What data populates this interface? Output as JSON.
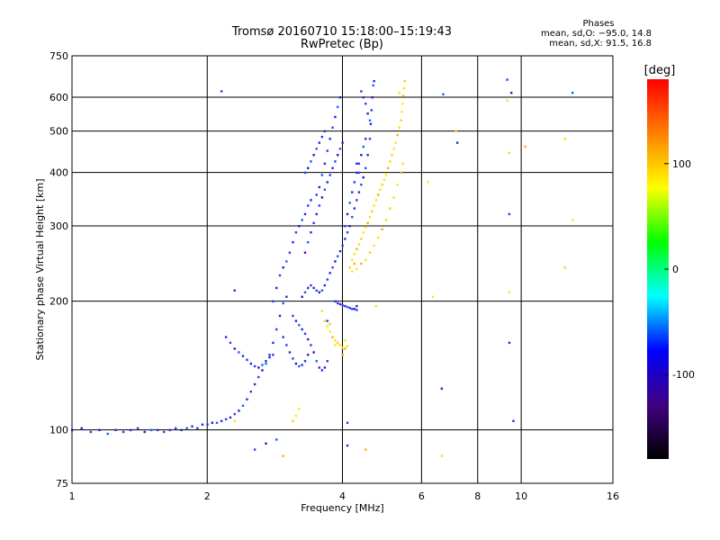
{
  "chart_data": {
    "type": "scatter",
    "title": "Tromsø 20160710 15:18:00–15:19:43",
    "subtitle": "RwPretec (Bp)",
    "xlabel": "Frequency [MHz]",
    "ylabel": "Stationary phase Virtual Height [km]",
    "x_scale": "log",
    "y_scale": "log",
    "xlim": [
      1,
      16
    ],
    "ylim": [
      75,
      750
    ],
    "x_ticks": [
      1,
      2,
      4,
      6,
      8,
      10,
      16
    ],
    "y_ticks": [
      75,
      100,
      200,
      300,
      400,
      500,
      600,
      750
    ],
    "grid": true,
    "phase_stats": {
      "title": "Phases",
      "line_o": "mean, sd,O: −95.0, 14.8",
      "line_x": "mean, sd,X:  91.5, 16.8"
    },
    "colorbar": {
      "label": "[deg]",
      "ticks": [
        100,
        0,
        -100
      ],
      "colors": [
        "#ff0000",
        "#ff8000",
        "#ffff00",
        "#00ff00",
        "#00ffff",
        "#0000ff",
        "#400080",
        "#000000"
      ]
    },
    "series": [
      {
        "mode": "O",
        "points": [
          [
            1.0,
            100
          ],
          [
            1.05,
            101
          ],
          [
            1.1,
            99
          ],
          [
            1.15,
            100
          ],
          [
            1.2,
            98
          ],
          [
            1.25,
            100
          ],
          [
            1.3,
            99
          ],
          [
            1.35,
            100
          ],
          [
            1.4,
            101
          ],
          [
            1.45,
            99
          ],
          [
            1.5,
            100
          ],
          [
            1.55,
            100
          ],
          [
            1.6,
            99
          ],
          [
            1.65,
            100
          ],
          [
            1.7,
            101
          ],
          [
            1.75,
            100
          ],
          [
            1.8,
            101
          ],
          [
            1.85,
            102
          ],
          [
            1.9,
            101
          ],
          [
            1.95,
            103
          ],
          [
            2.0,
            103
          ],
          [
            2.05,
            104
          ],
          [
            2.1,
            104
          ],
          [
            2.15,
            105
          ],
          [
            2.2,
            106
          ],
          [
            2.25,
            107
          ],
          [
            2.3,
            109
          ],
          [
            2.35,
            111
          ],
          [
            2.4,
            114
          ],
          [
            2.45,
            118
          ],
          [
            2.5,
            123
          ],
          [
            2.55,
            128
          ],
          [
            2.6,
            133
          ],
          [
            2.65,
            138
          ],
          [
            2.7,
            143
          ],
          [
            2.75,
            148
          ],
          [
            2.8,
            150
          ],
          [
            2.2,
            165
          ],
          [
            2.25,
            160
          ],
          [
            2.3,
            155
          ],
          [
            2.35,
            152
          ],
          [
            2.4,
            149
          ],
          [
            2.45,
            146
          ],
          [
            2.5,
            143
          ],
          [
            2.55,
            141
          ],
          [
            2.6,
            140
          ],
          [
            2.65,
            142
          ],
          [
            2.7,
            145
          ],
          [
            2.75,
            150
          ],
          [
            2.8,
            160
          ],
          [
            2.85,
            172
          ],
          [
            2.9,
            185
          ],
          [
            2.95,
            198
          ],
          [
            3.0,
            205
          ],
          [
            2.8,
            200
          ],
          [
            2.85,
            215
          ],
          [
            2.9,
            230
          ],
          [
            2.95,
            240
          ],
          [
            3.0,
            248
          ],
          [
            2.95,
            165
          ],
          [
            3.0,
            158
          ],
          [
            3.05,
            152
          ],
          [
            3.1,
            147
          ],
          [
            3.15,
            143
          ],
          [
            3.2,
            141
          ],
          [
            3.25,
            142
          ],
          [
            3.3,
            145
          ],
          [
            3.35,
            150
          ],
          [
            3.1,
            185
          ],
          [
            3.15,
            180
          ],
          [
            3.2,
            176
          ],
          [
            3.25,
            172
          ],
          [
            3.3,
            168
          ],
          [
            3.35,
            163
          ],
          [
            3.4,
            158
          ],
          [
            3.45,
            152
          ],
          [
            3.5,
            145
          ],
          [
            3.55,
            140
          ],
          [
            3.6,
            138
          ],
          [
            3.65,
            140
          ],
          [
            3.7,
            145
          ],
          [
            3.25,
            205
          ],
          [
            3.3,
            210
          ],
          [
            3.35,
            215
          ],
          [
            3.4,
            218
          ],
          [
            3.45,
            215
          ],
          [
            3.5,
            212
          ],
          [
            3.55,
            210
          ],
          [
            3.6,
            212
          ],
          [
            3.65,
            218
          ],
          [
            3.7,
            225
          ],
          [
            3.75,
            233
          ],
          [
            3.8,
            240
          ],
          [
            3.85,
            248
          ],
          [
            3.9,
            255
          ],
          [
            3.95,
            262
          ],
          [
            4.0,
            270
          ],
          [
            4.05,
            280
          ],
          [
            4.1,
            290
          ],
          [
            4.15,
            300
          ],
          [
            4.2,
            315
          ],
          [
            4.25,
            330
          ],
          [
            4.3,
            345
          ],
          [
            4.35,
            360
          ],
          [
            4.4,
            375
          ],
          [
            4.45,
            390
          ],
          [
            4.5,
            410
          ],
          [
            4.55,
            440
          ],
          [
            4.6,
            480
          ],
          [
            4.62,
            520
          ],
          [
            4.64,
            560
          ],
          [
            4.66,
            600
          ],
          [
            4.68,
            640
          ],
          [
            4.7,
            655
          ],
          [
            4.4,
            620
          ],
          [
            4.45,
            600
          ],
          [
            4.5,
            580
          ],
          [
            4.55,
            550
          ],
          [
            4.6,
            530
          ],
          [
            3.85,
            200
          ],
          [
            3.9,
            198
          ],
          [
            3.95,
            197
          ],
          [
            4.0,
            196
          ],
          [
            4.05,
            195
          ],
          [
            4.1,
            194
          ],
          [
            4.15,
            193
          ],
          [
            4.2,
            192
          ],
          [
            4.25,
            192
          ],
          [
            4.3,
            191
          ],
          [
            3.3,
            260
          ],
          [
            3.35,
            275
          ],
          [
            3.4,
            290
          ],
          [
            3.45,
            305
          ],
          [
            3.5,
            320
          ],
          [
            3.55,
            335
          ],
          [
            3.6,
            350
          ],
          [
            3.65,
            365
          ],
          [
            3.7,
            380
          ],
          [
            3.75,
            395
          ],
          [
            3.8,
            410
          ],
          [
            3.85,
            425
          ],
          [
            3.9,
            440
          ],
          [
            3.95,
            455
          ],
          [
            4.0,
            470
          ],
          [
            3.05,
            260
          ],
          [
            3.1,
            275
          ],
          [
            3.15,
            290
          ],
          [
            3.2,
            300
          ],
          [
            3.25,
            310
          ],
          [
            3.3,
            320
          ],
          [
            3.35,
            335
          ],
          [
            3.4,
            345
          ],
          [
            3.5,
            355
          ],
          [
            3.55,
            370
          ],
          [
            3.6,
            395
          ],
          [
            3.65,
            420
          ],
          [
            3.7,
            450
          ],
          [
            3.75,
            480
          ],
          [
            3.8,
            510
          ],
          [
            3.85,
            540
          ],
          [
            3.9,
            570
          ],
          [
            3.95,
            600
          ],
          [
            3.3,
            400
          ],
          [
            3.35,
            410
          ],
          [
            3.4,
            425
          ],
          [
            3.45,
            440
          ],
          [
            3.5,
            455
          ],
          [
            3.55,
            470
          ],
          [
            3.6,
            485
          ],
          [
            3.65,
            500
          ],
          [
            4.05,
            300
          ],
          [
            4.1,
            320
          ],
          [
            4.15,
            340
          ],
          [
            4.2,
            360
          ],
          [
            4.25,
            380
          ],
          [
            4.3,
            400
          ],
          [
            4.35,
            420
          ],
          [
            4.4,
            440
          ],
          [
            4.45,
            460
          ],
          [
            4.5,
            480
          ],
          [
            2.15,
            620
          ],
          [
            2.3,
            212
          ],
          [
            2.55,
            90
          ],
          [
            2.7,
            93
          ],
          [
            2.85,
            95
          ],
          [
            4.1,
            92
          ],
          [
            4.1,
            104
          ],
          [
            4.3,
            420
          ],
          [
            4.35,
            400
          ],
          [
            6.65,
            125
          ],
          [
            6.7,
            610
          ],
          [
            9.4,
            160
          ],
          [
            9.4,
            320
          ],
          [
            9.6,
            105
          ],
          [
            9.3,
            660
          ],
          [
            9.5,
            615
          ],
          [
            13.0,
            615
          ],
          [
            7.2,
            470
          ],
          [
            3.7,
            180
          ],
          [
            4.3,
            195
          ]
        ]
      },
      {
        "mode": "X",
        "points": [
          [
            3.65,
            180
          ],
          [
            3.7,
            175
          ],
          [
            3.75,
            170
          ],
          [
            3.8,
            165
          ],
          [
            3.85,
            162
          ],
          [
            3.9,
            160
          ],
          [
            3.95,
            158
          ],
          [
            4.0,
            156
          ],
          [
            4.05,
            155
          ],
          [
            4.1,
            157
          ],
          [
            4.15,
            240
          ],
          [
            4.2,
            250
          ],
          [
            4.25,
            258
          ],
          [
            4.3,
            265
          ],
          [
            4.35,
            272
          ],
          [
            4.4,
            280
          ],
          [
            4.45,
            290
          ],
          [
            4.5,
            298
          ],
          [
            4.55,
            305
          ],
          [
            4.6,
            315
          ],
          [
            4.65,
            325
          ],
          [
            4.7,
            335
          ],
          [
            4.75,
            345
          ],
          [
            4.8,
            355
          ],
          [
            4.85,
            365
          ],
          [
            4.9,
            375
          ],
          [
            4.95,
            385
          ],
          [
            5.0,
            395
          ],
          [
            5.05,
            410
          ],
          [
            5.1,
            425
          ],
          [
            5.15,
            440
          ],
          [
            5.2,
            455
          ],
          [
            5.25,
            470
          ],
          [
            5.3,
            490
          ],
          [
            5.35,
            510
          ],
          [
            5.4,
            530
          ],
          [
            5.42,
            555
          ],
          [
            5.44,
            580
          ],
          [
            5.46,
            605
          ],
          [
            5.48,
            630
          ],
          [
            5.5,
            655
          ],
          [
            4.2,
            235
          ],
          [
            4.3,
            238
          ],
          [
            4.4,
            245
          ],
          [
            4.5,
            250
          ],
          [
            4.6,
            260
          ],
          [
            4.7,
            270
          ],
          [
            4.8,
            282
          ],
          [
            4.9,
            295
          ],
          [
            5.0,
            310
          ],
          [
            5.1,
            330
          ],
          [
            5.2,
            350
          ],
          [
            5.3,
            375
          ],
          [
            5.4,
            400
          ],
          [
            5.45,
            420
          ],
          [
            3.1,
            105
          ],
          [
            3.15,
            108
          ],
          [
            3.2,
            112
          ],
          [
            2.95,
            87
          ],
          [
            6.65,
            87
          ],
          [
            7.15,
            500
          ],
          [
            9.3,
            590
          ],
          [
            9.4,
            210
          ],
          [
            10.2,
            460
          ],
          [
            12.5,
            480
          ],
          [
            12.5,
            240
          ],
          [
            6.2,
            380
          ],
          [
            6.35,
            205
          ],
          [
            4.5,
            90
          ],
          [
            4.75,
            195
          ],
          [
            9.4,
            445
          ],
          [
            13.0,
            310
          ],
          [
            2.3,
            105
          ],
          [
            4.0,
            150
          ],
          [
            3.6,
            190
          ],
          [
            3.75,
            177
          ],
          [
            3.85,
            158
          ],
          [
            4.05,
            162
          ],
          [
            4.25,
            245
          ],
          [
            5.35,
            615
          ]
        ]
      }
    ]
  }
}
